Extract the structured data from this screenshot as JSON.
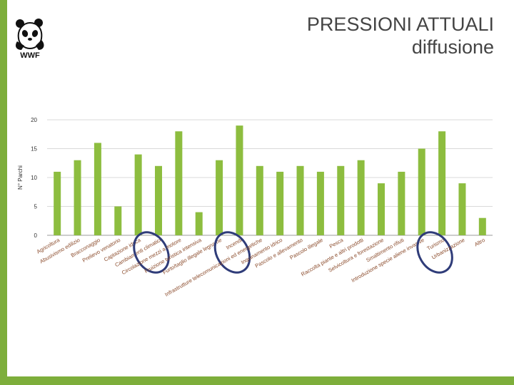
{
  "slide": {
    "title_line1": "PRESSIONI ATTUALI",
    "title_line2": "diffusione",
    "logo_text": "WWF",
    "accent_color": "#7dae3b"
  },
  "chart_data": {
    "type": "bar",
    "ylabel": "N° Parchi",
    "xlabel": "",
    "ylim": [
      0,
      20
    ],
    "yticks": [
      0,
      5,
      10,
      15,
      20
    ],
    "bar_color": "#8dbd3f",
    "highlight_color": "#2f3c79",
    "categories": [
      "Agricoltura",
      "Abusivismo edilizio",
      "Bracconaggio",
      "Prelievo venatorio",
      "Captazione idrica",
      "Cambiamenti climatici",
      "Circolazione mezzi a motore",
      "Fruizione turistica intensiva",
      "Furto/taglio illegale legname",
      "Incendi",
      "Infrastrutture telecomunicazioni ed energetiche",
      "Inquinamento idrico",
      "Pascolo e allevamento",
      "Pascolo illegale",
      "Pesca",
      "Raccolta piante e altri prodotti",
      "Selvicoltura e forestazione",
      "Smaltimento rifiuti",
      "Introduzione specie aliene invasive",
      "Turismo",
      "Urbanizzazione",
      "Altro"
    ],
    "values": [
      11,
      13,
      16,
      5,
      14,
      12,
      18,
      4,
      13,
      19,
      12,
      11,
      12,
      11,
      12,
      13,
      9,
      11,
      15,
      18,
      9,
      3
    ],
    "highlighted_categories": [
      "Cambiamenti climatici",
      "Incendi",
      "Turismo"
    ]
  }
}
